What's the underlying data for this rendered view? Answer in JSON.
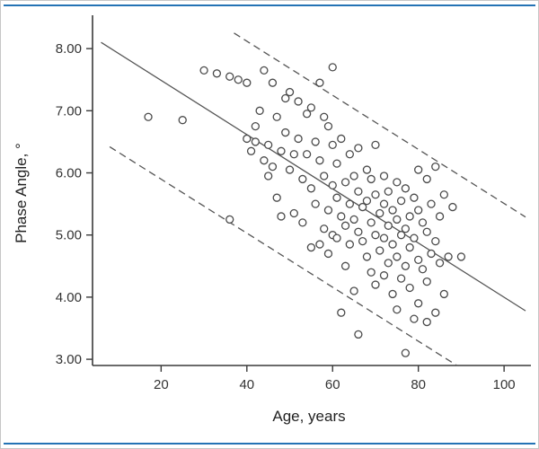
{
  "figure": {
    "accent_color": "#2473b5",
    "marker_stroke": "#4a4a4a",
    "line_color": "#555555"
  },
  "chart_data": {
    "type": "scatter",
    "title": "",
    "xlabel": "Age, years",
    "ylabel": "Phase Angle, °",
    "xlim": [
      4,
      105
    ],
    "ylim": [
      2.9,
      8.45
    ],
    "x_ticks": [
      20,
      40,
      60,
      80,
      100
    ],
    "y_ticks": [
      3,
      4,
      5,
      6,
      7,
      8
    ],
    "y_tick_decimals": 2,
    "grid": false,
    "legend": false,
    "marker": {
      "shape": "open-circle",
      "radius": 4
    },
    "lines": [
      {
        "name": "regression-line",
        "style": "solid",
        "points": [
          [
            6,
            8.1
          ],
          [
            105,
            3.78
          ]
        ]
      },
      {
        "name": "upper-band-line",
        "style": "dashed",
        "points": [
          [
            37,
            8.25
          ],
          [
            105,
            5.29
          ]
        ]
      },
      {
        "name": "lower-band-line",
        "style": "dashed",
        "points": [
          [
            8,
            6.42
          ],
          [
            89,
            2.9
          ]
        ]
      }
    ],
    "points": [
      [
        17,
        6.9
      ],
      [
        25,
        6.85
      ],
      [
        30,
        7.65
      ],
      [
        33,
        7.6
      ],
      [
        36,
        5.25
      ],
      [
        36,
        7.55
      ],
      [
        38,
        7.5
      ],
      [
        40,
        7.45
      ],
      [
        40,
        6.55
      ],
      [
        41,
        6.35
      ],
      [
        42,
        6.75
      ],
      [
        42,
        6.5
      ],
      [
        43,
        7.0
      ],
      [
        44,
        7.65
      ],
      [
        44,
        6.2
      ],
      [
        45,
        5.95
      ],
      [
        45,
        6.45
      ],
      [
        46,
        7.45
      ],
      [
        46,
        6.1
      ],
      [
        47,
        6.9
      ],
      [
        47,
        5.6
      ],
      [
        48,
        6.35
      ],
      [
        48,
        5.3
      ],
      [
        49,
        7.2
      ],
      [
        49,
        6.65
      ],
      [
        50,
        7.3
      ],
      [
        50,
        6.05
      ],
      [
        51,
        5.35
      ],
      [
        51,
        6.3
      ],
      [
        52,
        7.15
      ],
      [
        52,
        6.55
      ],
      [
        53,
        5.9
      ],
      [
        53,
        5.2
      ],
      [
        54,
        6.95
      ],
      [
        54,
        6.3
      ],
      [
        55,
        7.05
      ],
      [
        55,
        5.75
      ],
      [
        55,
        4.8
      ],
      [
        56,
        6.5
      ],
      [
        56,
        5.5
      ],
      [
        57,
        7.45
      ],
      [
        57,
        6.2
      ],
      [
        57,
        4.85
      ],
      [
        58,
        6.9
      ],
      [
        58,
        5.95
      ],
      [
        58,
        5.1
      ],
      [
        59,
        6.75
      ],
      [
        59,
        5.4
      ],
      [
        59,
        4.7
      ],
      [
        60,
        7.7
      ],
      [
        60,
        6.45
      ],
      [
        60,
        5.8
      ],
      [
        60,
        5.0
      ],
      [
        61,
        6.15
      ],
      [
        61,
        5.6
      ],
      [
        61,
        4.95
      ],
      [
        62,
        6.55
      ],
      [
        62,
        5.3
      ],
      [
        62,
        3.75
      ],
      [
        63,
        5.85
      ],
      [
        63,
        5.15
      ],
      [
        63,
        4.5
      ],
      [
        64,
        6.3
      ],
      [
        64,
        5.5
      ],
      [
        64,
        4.85
      ],
      [
        65,
        5.95
      ],
      [
        65,
        5.25
      ],
      [
        65,
        4.1
      ],
      [
        66,
        6.4
      ],
      [
        66,
        5.7
      ],
      [
        66,
        5.05
      ],
      [
        66,
        3.4
      ],
      [
        67,
        5.45
      ],
      [
        67,
        4.9
      ],
      [
        68,
        6.05
      ],
      [
        68,
        5.55
      ],
      [
        68,
        4.65
      ],
      [
        69,
        5.9
      ],
      [
        69,
        5.2
      ],
      [
        69,
        4.4
      ],
      [
        70,
        6.45
      ],
      [
        70,
        5.65
      ],
      [
        70,
        5.0
      ],
      [
        70,
        4.2
      ],
      [
        71,
        5.35
      ],
      [
        71,
        4.75
      ],
      [
        72,
        5.95
      ],
      [
        72,
        5.5
      ],
      [
        72,
        4.95
      ],
      [
        72,
        4.35
      ],
      [
        73,
        5.7
      ],
      [
        73,
        5.15
      ],
      [
        73,
        4.55
      ],
      [
        74,
        5.4
      ],
      [
        74,
        4.85
      ],
      [
        74,
        4.05
      ],
      [
        75,
        5.85
      ],
      [
        75,
        5.25
      ],
      [
        75,
        4.65
      ],
      [
        75,
        3.8
      ],
      [
        76,
        5.55
      ],
      [
        76,
        5.0
      ],
      [
        76,
        4.3
      ],
      [
        77,
        5.75
      ],
      [
        77,
        5.1
      ],
      [
        77,
        4.5
      ],
      [
        77,
        3.1
      ],
      [
        78,
        5.3
      ],
      [
        78,
        4.8
      ],
      [
        78,
        4.15
      ],
      [
        79,
        5.6
      ],
      [
        79,
        4.95
      ],
      [
        79,
        3.65
      ],
      [
        80,
        6.05
      ],
      [
        80,
        5.4
      ],
      [
        80,
        4.6
      ],
      [
        80,
        3.9
      ],
      [
        81,
        5.2
      ],
      [
        81,
        4.45
      ],
      [
        82,
        5.9
      ],
      [
        82,
        5.05
      ],
      [
        82,
        4.25
      ],
      [
        82,
        3.6
      ],
      [
        83,
        5.5
      ],
      [
        83,
        4.7
      ],
      [
        84,
        6.1
      ],
      [
        84,
        4.9
      ],
      [
        84,
        3.75
      ],
      [
        85,
        5.3
      ],
      [
        85,
        4.55
      ],
      [
        86,
        5.65
      ],
      [
        86,
        4.05
      ],
      [
        87,
        4.65
      ],
      [
        88,
        5.45
      ],
      [
        90,
        4.65
      ]
    ]
  }
}
